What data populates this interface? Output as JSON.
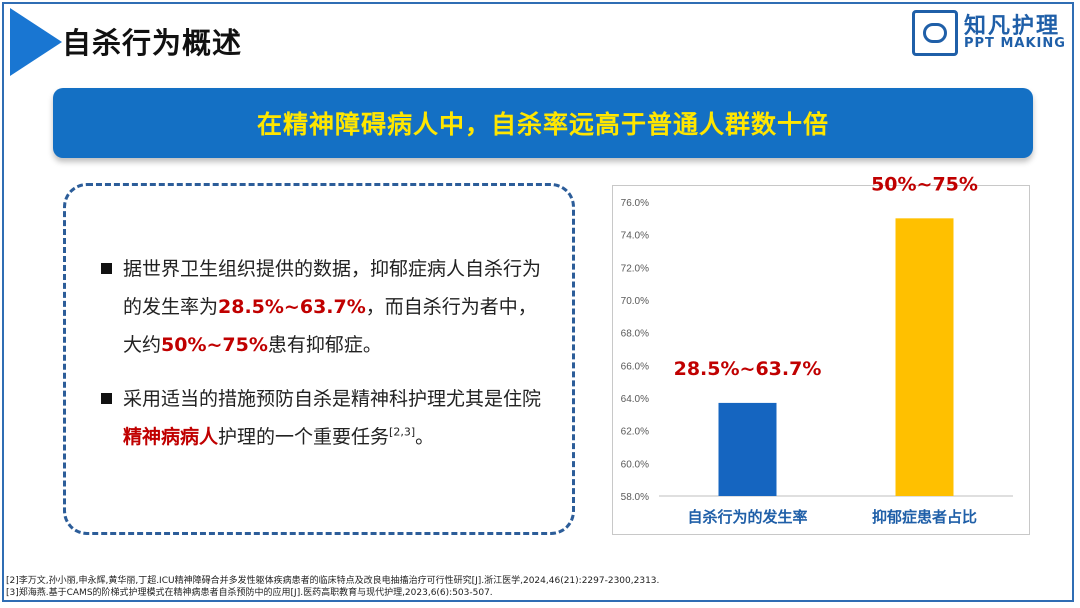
{
  "header": {
    "title": "自杀行为概述"
  },
  "logo": {
    "main": "知凡护理",
    "sub": "PPT MAKING"
  },
  "banner": {
    "text": "在精神障碍病人中，自杀率远高于普通人群数十倍"
  },
  "bullets": {
    "b1_part1": "据世界卫生组织提供的数据，抑郁症病人自杀行为的发生率为",
    "b1_hl1": "28.5%~63.7%",
    "b1_part2": "，而自杀行为者中，大约",
    "b1_hl2": "50%~75%",
    "b1_part3": "患有抑郁症。",
    "b2_part1": "采用适当的措施预防自杀是精神科护理尤其是住院",
    "b2_hl": "精神病病人",
    "b2_part2": "护理的一个重要任务",
    "b2_ref": "[2,3]",
    "b2_end": "。"
  },
  "chart_data": {
    "type": "bar",
    "categories": [
      "自杀行为的发生率",
      "抑郁症患者占比"
    ],
    "values": [
      63.7,
      75.0
    ],
    "data_labels": [
      "28.5%~63.7%",
      "50%~75%"
    ],
    "colors": [
      "#1565c0",
      "#ffc000"
    ],
    "ylim": [
      58,
      76
    ],
    "yticks": [
      58,
      60,
      62,
      64,
      66,
      68,
      70,
      72,
      74,
      76
    ],
    "ytick_labels": [
      "58.0%",
      "60.0%",
      "62.0%",
      "64.0%",
      "66.0%",
      "68.0%",
      "70.0%",
      "72.0%",
      "74.0%",
      "76.0%"
    ],
    "label_color": "#c00000",
    "category_label_color": "#1f5fa8",
    "grid": false
  },
  "references": {
    "r2": "[2]李万文,孙小丽,申永辉,黄华丽,丁超.ICU精神障碍合并多发性躯体疾病患者的临床特点及改良电抽搐治疗可行性研究[J].浙江医学,2024,46(21):2297-2300,2313.",
    "r3": "[3]郑海燕.基于CAMS的阶梯式护理模式在精神病患者自杀预防中的应用[J].医药高职教育与现代护理,2023,6(6):503-507."
  }
}
